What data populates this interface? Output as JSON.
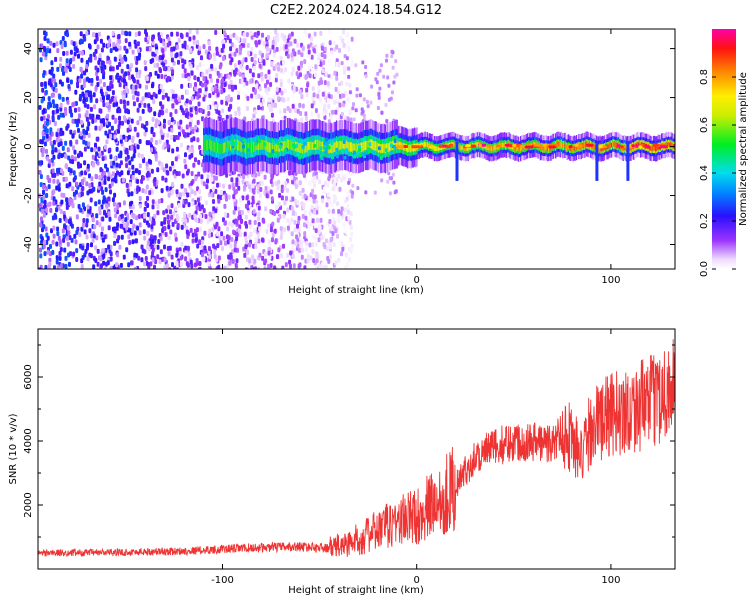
{
  "title": "C2E2.2024.024.18.54.G12",
  "chart_data": [
    {
      "type": "heatmap",
      "xlabel": "Height of straight line (km)",
      "ylabel": "Frequency (Hz)",
      "xlim": [
        -195,
        133
      ],
      "ylim": [
        -50,
        48
      ],
      "xticks": [
        -100,
        0,
        100
      ],
      "yticks": [
        -40,
        -20,
        0,
        20,
        40
      ],
      "colorbar": {
        "label": "Normalized spectral amplitude",
        "range": [
          0,
          1
        ],
        "ticks": [
          "0.0",
          "0.2",
          "0.4",
          "0.6",
          "0.8"
        ],
        "colormap": "rainbow (white-purple-blue-cyan-green-yellow-orange-red-magenta)"
      },
      "features": {
        "broadband_noise_x_range": [
          -195,
          -40
        ],
        "signal_band_start_x": -110,
        "signal_center_frequency": 0,
        "signal_peak_amplitude": 0.95,
        "signal_spike_heights_x": [
          20,
          92,
          108
        ]
      }
    },
    {
      "type": "line",
      "xlabel": "Height of straight line (km)",
      "ylabel": "SNR (10 * v/v)",
      "xlim": [
        -195,
        133
      ],
      "ylim": [
        0,
        7500
      ],
      "xticks": [
        -100,
        0,
        100
      ],
      "yticks": [
        2000,
        4000,
        6000
      ],
      "series": [
        {
          "color": "#ee3333",
          "x": [
            -195,
            -150,
            -120,
            -90,
            -60,
            -45,
            -35,
            -20,
            -10,
            0,
            10,
            20,
            30,
            40,
            50,
            60,
            70,
            75,
            80,
            85,
            90,
            100,
            110,
            120,
            133
          ],
          "y": [
            500,
            520,
            560,
            650,
            700,
            650,
            800,
            1200,
            1500,
            1650,
            2100,
            2600,
            3500,
            3800,
            4000,
            4000,
            3900,
            4300,
            4100,
            3400,
            4500,
            4800,
            5000,
            5200,
            5800
          ]
        }
      ]
    }
  ]
}
